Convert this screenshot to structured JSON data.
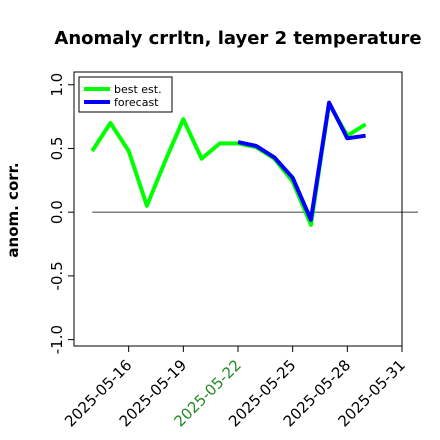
{
  "chart_data": {
    "type": "line",
    "title": "Anomaly crrltn, layer 2 temperature",
    "ylabel": "anom. corr.",
    "xlabel": "",
    "ylim": [
      -1.05,
      1.1
    ],
    "xlim": [
      "2025-05-13",
      "2025-05-31"
    ],
    "yticks": [
      -1.0,
      -0.5,
      0.0,
      0.5,
      1.0
    ],
    "ytick_labels": [
      "-1.0",
      "-0.5",
      "0.0",
      "0.5",
      "1.0"
    ],
    "xticks": [
      "2025-05-16",
      "2025-05-19",
      "2025-05-22",
      "2025-05-25",
      "2025-05-28",
      "2025-05-31"
    ],
    "highlighted_xtick": "2025-05-22",
    "highlight_color": "#228b22",
    "reference_line": 0.0,
    "legend_position": "top-left",
    "series": [
      {
        "name": "best est.",
        "color": "#00ff00",
        "x": [
          "2025-05-14",
          "2025-05-15",
          "2025-05-16",
          "2025-05-17",
          "2025-05-18",
          "2025-05-19",
          "2025-05-20",
          "2025-05-21",
          "2025-05-22",
          "2025-05-23",
          "2025-05-24",
          "2025-05-25",
          "2025-05-26",
          "2025-05-27",
          "2025-05-28",
          "2025-05-29"
        ],
        "values": [
          0.48,
          0.7,
          0.48,
          0.05,
          0.4,
          0.73,
          0.42,
          0.54,
          0.54,
          0.51,
          0.42,
          0.24,
          -0.1,
          0.85,
          0.6,
          0.69
        ]
      },
      {
        "name": "forecast",
        "color": "#0000ff",
        "x": [
          "2025-05-22",
          "2025-05-23",
          "2025-05-24",
          "2025-05-25",
          "2025-05-26",
          "2025-05-27",
          "2025-05-28",
          "2025-05-29"
        ],
        "values": [
          0.55,
          0.52,
          0.43,
          0.27,
          -0.06,
          0.86,
          0.58,
          0.6
        ]
      }
    ]
  }
}
